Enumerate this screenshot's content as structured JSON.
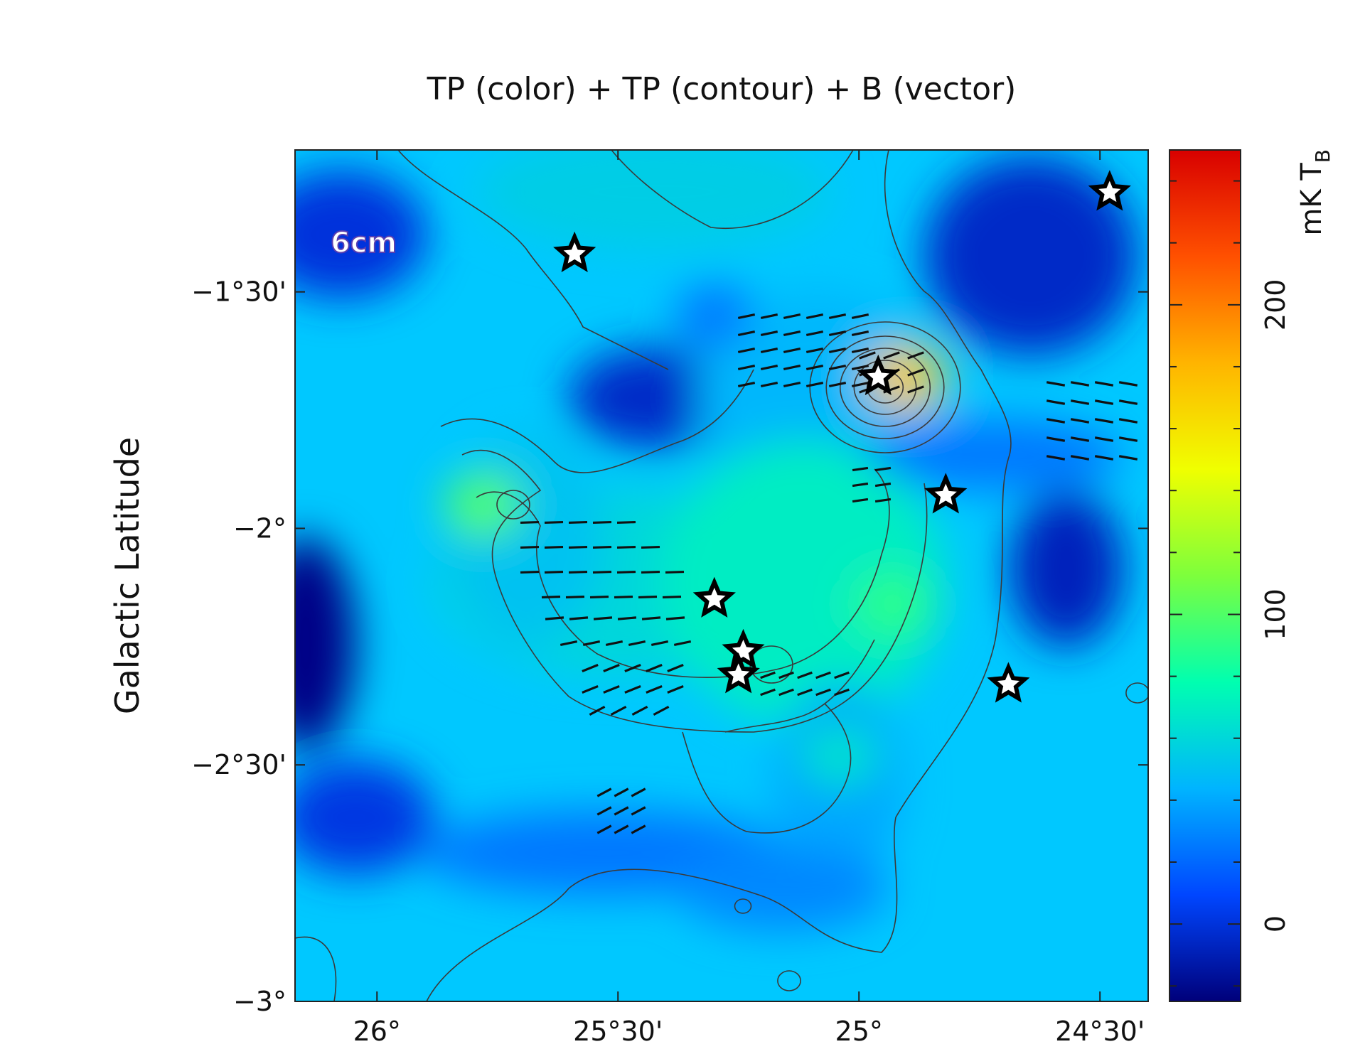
{
  "chart_data": {
    "type": "heatmap",
    "title": "TP (color) + TP (contour) + B (vector)",
    "ylabel": "Galactic Latitude",
    "xlabel": "",
    "band_label": "6cm",
    "x_tick_labels": [
      "26°",
      "25°30'",
      "25°",
      "24°30'"
    ],
    "x_ticks_deg": [
      26.0,
      25.5,
      25.0,
      24.5
    ],
    "xlim_deg": [
      26.17,
      24.4
    ],
    "y_tick_labels": [
      "−1°30'",
      "−2°",
      "−2°30'",
      "−3°"
    ],
    "y_ticks_deg": [
      -1.5,
      -2.0,
      -2.5,
      -3.0
    ],
    "ylim_deg": [
      -3.0,
      -1.2
    ],
    "colorbar": {
      "unit": "mK T_B",
      "tick_labels": [
        "0",
        "100",
        "200"
      ],
      "tick_values": [
        0,
        100,
        200
      ],
      "range": [
        -25,
        250
      ],
      "colormap": [
        "#00007a",
        "#0046ff",
        "#00b4ff",
        "#00ffb0",
        "#7dff3c",
        "#f0ff00",
        "#ffb400",
        "#ff5000",
        "#d80000"
      ]
    },
    "sources": [
      {
        "l": 25.59,
        "b": -1.42
      },
      {
        "l": 24.48,
        "b": -1.29
      },
      {
        "l": 24.96,
        "b": -1.68
      },
      {
        "l": 24.82,
        "b": -1.93
      },
      {
        "l": 25.3,
        "b": -2.15
      },
      {
        "l": 25.24,
        "b": -2.26
      },
      {
        "l": 25.25,
        "b": -2.31
      },
      {
        "l": 24.69,
        "b": -2.33
      }
    ],
    "bright_peaks": [
      {
        "l": 24.9,
        "b": -1.68,
        "level": 170
      },
      {
        "l": 25.78,
        "b": -1.95,
        "level": 100
      },
      {
        "l": 25.3,
        "b": -1.55,
        "level": 25
      },
      {
        "l": 24.93,
        "b": -2.16,
        "level": 90
      },
      {
        "l": 25.04,
        "b": -2.48,
        "level": 65
      }
    ]
  }
}
